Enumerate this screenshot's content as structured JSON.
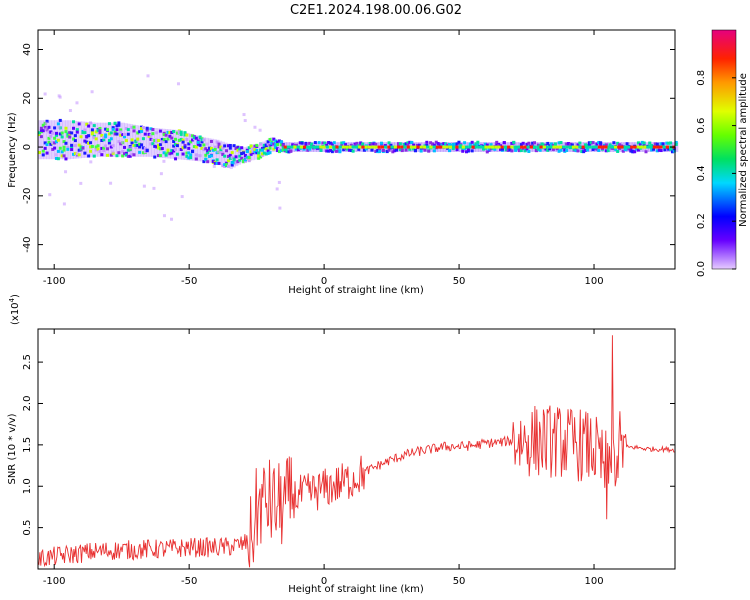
{
  "title": "C2E1.2024.198.00.06.G02",
  "colors": {
    "snr_line": "#e83030",
    "bar_high": "#e6007e",
    "bar_low": "#e6ccff"
  },
  "chart_data": [
    {
      "type": "heatmap",
      "name": "spectrogram",
      "xlabel": "Height of straight line (km)",
      "ylabel": "Frequency (Hz)",
      "xlim": [
        -106,
        130
      ],
      "ylim": [
        -50,
        48
      ],
      "xticks": [
        -100,
        -50,
        0,
        50,
        100
      ],
      "yticks": [
        -40,
        -20,
        0,
        20,
        40
      ],
      "colorbar": {
        "label": "Normalized spectral amplitude",
        "range": [
          0,
          1
        ],
        "ticks": [
          0.0,
          0.2,
          0.4,
          0.6,
          0.8
        ]
      },
      "band": {
        "x": [
          -106,
          -95,
          -85,
          -75,
          -65,
          -55,
          -45,
          -40,
          -35,
          -30,
          -25,
          -20,
          -15,
          -10,
          0,
          20,
          40,
          60,
          80,
          100,
          110,
          130
        ],
        "center_hz": [
          3,
          3,
          3,
          3,
          2,
          1,
          -1,
          -2,
          -4,
          -3,
          -2,
          1,
          0,
          0,
          0,
          0,
          0,
          0,
          0,
          0,
          0,
          0
        ],
        "halfwidth_hz": [
          8,
          8,
          7,
          7,
          6,
          6,
          5,
          5,
          5,
          3,
          3,
          3,
          2,
          2,
          2,
          2,
          2,
          2,
          2,
          2,
          2,
          2
        ]
      }
    },
    {
      "type": "line",
      "name": "snr",
      "xlabel": "Height of straight line (km)",
      "ylabel": "SNR (10 * v/v)",
      "yscale_label": "(x10",
      "yscale_exp": "4",
      "yscale_suffix": ")",
      "xlim": [
        -106,
        130
      ],
      "ylim": [
        0,
        2.9
      ],
      "xticks": [
        -100,
        -50,
        0,
        50,
        100
      ],
      "yticks": [
        0.5,
        1.0,
        1.5,
        2.0,
        2.5
      ],
      "ytick_labels": [
        "0.5",
        "1.0",
        "1.5",
        "2.0",
        "2.5"
      ],
      "series": [
        {
          "name": "SNR",
          "x": [
            -106,
            -100,
            -95,
            -90,
            -85,
            -80,
            -75,
            -70,
            -65,
            -60,
            -55,
            -50,
            -45,
            -40,
            -35,
            -30,
            -27,
            -25,
            -23,
            -20,
            -18,
            -15,
            -12,
            -10,
            -5,
            0,
            5,
            10,
            15,
            20,
            25,
            30,
            35,
            40,
            45,
            50,
            55,
            60,
            65,
            70,
            75,
            80,
            85,
            90,
            95,
            100,
            104,
            106,
            108,
            110,
            112,
            115,
            120,
            125,
            130
          ],
          "y": [
            0.12,
            0.15,
            0.17,
            0.19,
            0.21,
            0.22,
            0.23,
            0.23,
            0.24,
            0.24,
            0.25,
            0.26,
            0.26,
            0.26,
            0.27,
            0.3,
            0.35,
            0.7,
            0.8,
            0.8,
            0.75,
            0.78,
            0.85,
            0.88,
            0.92,
            0.97,
            1.02,
            1.08,
            1.17,
            1.25,
            1.32,
            1.38,
            1.42,
            1.45,
            1.48,
            1.48,
            1.49,
            1.52,
            1.53,
            1.55,
            1.55,
            1.55,
            1.55,
            1.52,
            1.5,
            1.45,
            1.2,
            1.5,
            1.4,
            1.5,
            1.47,
            1.47,
            1.45,
            1.45,
            1.44
          ]
        }
      ]
    }
  ]
}
